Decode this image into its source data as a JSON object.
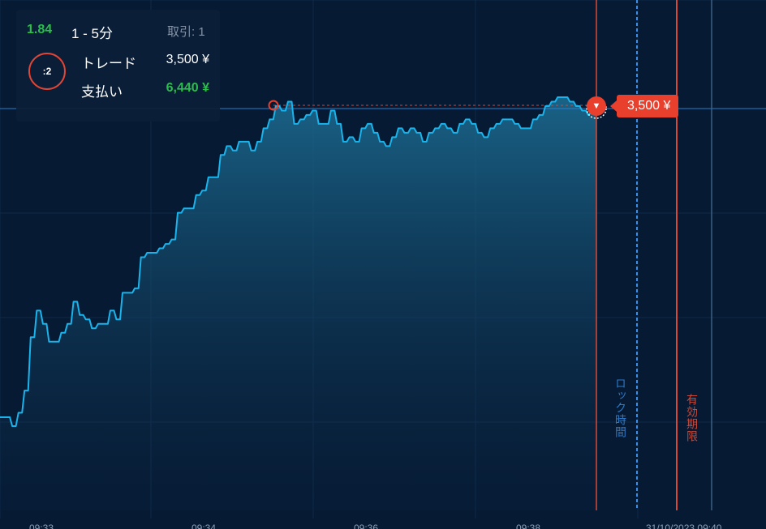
{
  "trade_panel": {
    "payout_rate": "1.84",
    "duration": "1 - 5分",
    "trades_count": "取引: 1",
    "timer": ":2",
    "trade_label": "トレード",
    "trade_amount": "3,500 ¥",
    "payout_label": "支払い",
    "payout_amount": "6,440 ¥"
  },
  "price_tag": "3,500 ¥",
  "put_marker_symbol": "▼",
  "markers": {
    "lock_label": "ロック時間",
    "expiry_label": "有効期限"
  },
  "x_axis_labels": [
    "09:33 ...",
    "09:34 ...",
    "09:36 ...",
    "09:38 ...",
    "31/10/2023 09:40"
  ],
  "colors": {
    "background": "#061a33",
    "line": "#19b4ec",
    "put": "#e8402d",
    "win": "#2dbd4e",
    "lock_line": "#3c8ee6",
    "expiry_line": "#d94a36"
  },
  "chart_data": {
    "type": "area",
    "ylim": [
      0,
      100
    ],
    "strike": 92,
    "values": [
      24,
      24,
      22,
      25,
      30,
      42,
      48,
      45,
      41,
      41,
      43,
      45,
      50,
      47,
      46,
      44,
      45,
      45,
      48,
      46,
      52,
      52,
      53,
      60,
      61,
      61,
      62,
      63,
      64,
      70,
      71,
      71,
      74,
      75,
      78,
      78,
      83,
      85,
      84,
      86,
      86,
      84,
      86,
      89,
      91,
      94,
      93,
      95,
      90,
      91,
      92,
      93,
      90,
      90,
      93,
      90,
      86,
      87,
      86,
      89,
      90,
      88,
      86,
      85,
      87,
      89,
      88,
      89,
      88,
      86,
      88,
      89,
      90,
      89,
      88,
      90,
      91,
      90,
      88,
      87,
      89,
      90,
      91,
      91,
      90,
      89,
      89,
      91,
      92,
      94,
      95,
      96,
      96,
      95,
      94,
      93,
      92
    ]
  }
}
